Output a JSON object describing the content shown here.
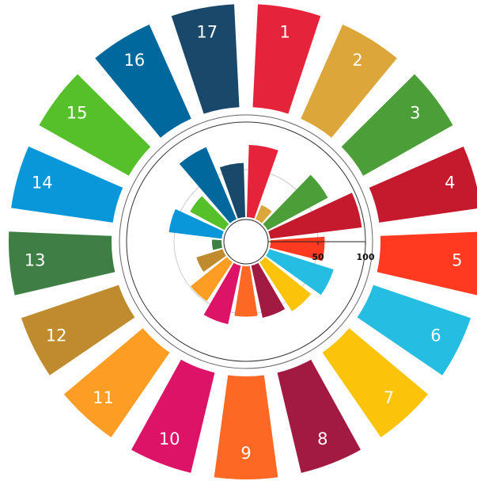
{
  "chart_data": {
    "type": "polar_bar",
    "categories": [
      "1",
      "2",
      "3",
      "4",
      "5",
      "6",
      "7",
      "8",
      "9",
      "10",
      "11",
      "12",
      "13",
      "14",
      "15",
      "16",
      "17"
    ],
    "values": [
      76,
      16,
      72,
      97,
      57,
      71,
      62,
      56,
      53,
      63,
      49,
      29,
      10,
      56,
      41,
      82,
      57
    ],
    "colors": [
      "#e5243b",
      "#dda63a",
      "#4c9f38",
      "#c5192d",
      "#ff3a21",
      "#26bde2",
      "#fcc30b",
      "#a21942",
      "#fd6925",
      "#dd1367",
      "#fd9d24",
      "#bf8b2e",
      "#3f7e44",
      "#0a97d9",
      "#56c02b",
      "#00689d",
      "#19486a"
    ],
    "ylim": [
      0,
      100
    ],
    "yticks": [
      50,
      100
    ],
    "grid": true
  }
}
